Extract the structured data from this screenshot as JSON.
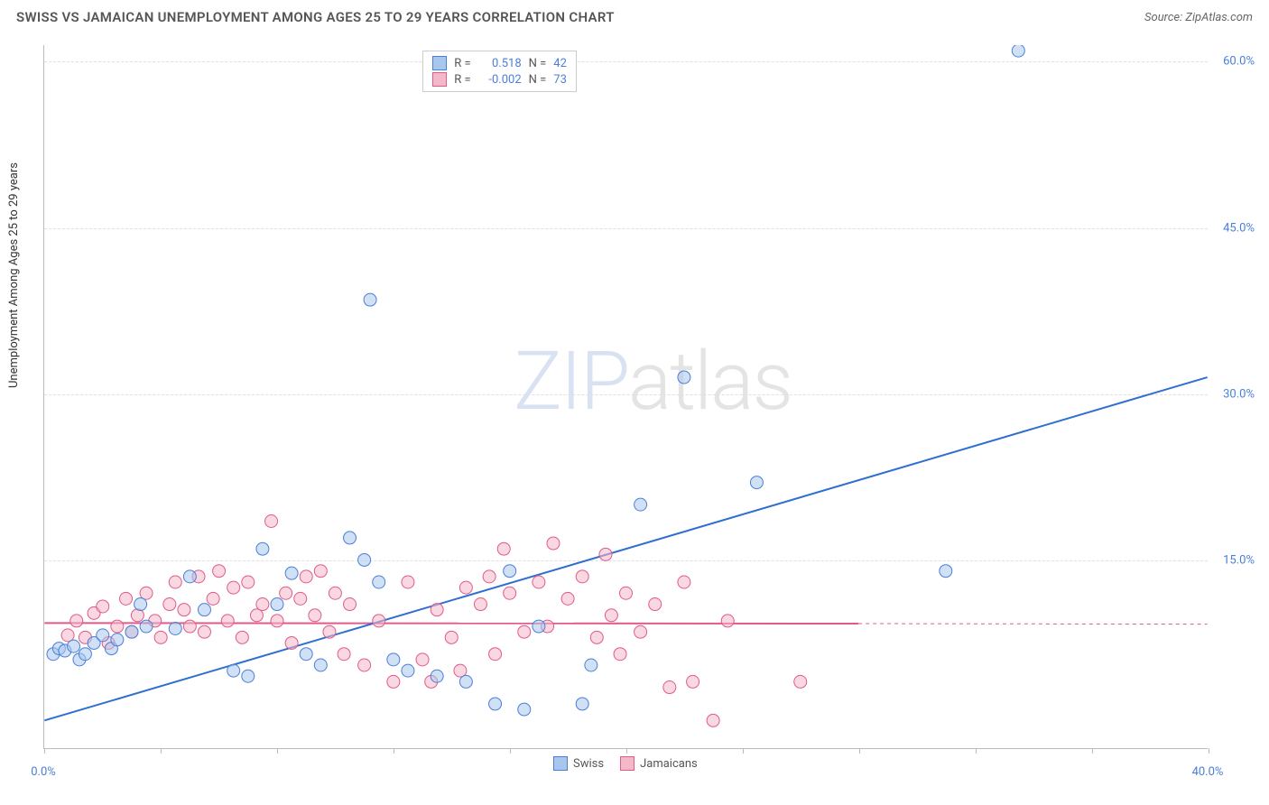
{
  "title": "SWISS VS JAMAICAN UNEMPLOYMENT AMONG AGES 25 TO 29 YEARS CORRELATION CHART",
  "source_label": "Source: ZipAtlas.com",
  "watermark_a": "ZIP",
  "watermark_b": "atlas",
  "chart": {
    "type": "scatter",
    "ylabel": "Unemployment Among Ages 25 to 29 years",
    "xlim": [
      0,
      40
    ],
    "ylim": [
      -2,
      61.5
    ],
    "xtick_positions": [
      0,
      4,
      8,
      12,
      16,
      20,
      24,
      28,
      32,
      36,
      40
    ],
    "xtick_labels": {
      "0": "0.0%",
      "40": "40.0%"
    },
    "ytick_positions": [
      15,
      30,
      45,
      60
    ],
    "ytick_labels": [
      "15.0%",
      "30.0%",
      "45.0%",
      "60.0%"
    ],
    "grid_color": "#e0e0e0",
    "background_color": "#ffffff",
    "series": {
      "swiss": {
        "label": "Swiss",
        "fill": "#a9c6ed",
        "stroke": "#4a7fd8",
        "marker_radius": 7,
        "fill_opacity": 0.55,
        "line": {
          "x1": 0,
          "y1": 0.5,
          "x2": 40,
          "y2": 31.5,
          "color": "#2f6fd0",
          "width": 2
        },
        "points": [
          [
            0.3,
            6.5
          ],
          [
            0.5,
            7.0
          ],
          [
            0.7,
            6.8
          ],
          [
            1.0,
            7.2
          ],
          [
            1.2,
            6.0
          ],
          [
            1.4,
            6.5
          ],
          [
            1.7,
            7.5
          ],
          [
            2.0,
            8.2
          ],
          [
            2.3,
            7.0
          ],
          [
            2.5,
            7.8
          ],
          [
            3.0,
            8.5
          ],
          [
            3.3,
            11.0
          ],
          [
            3.5,
            9.0
          ],
          [
            4.5,
            8.8
          ],
          [
            5.0,
            13.5
          ],
          [
            5.5,
            10.5
          ],
          [
            6.5,
            5.0
          ],
          [
            7.0,
            4.5
          ],
          [
            7.5,
            16.0
          ],
          [
            8.0,
            11.0
          ],
          [
            8.5,
            13.8
          ],
          [
            9.0,
            6.5
          ],
          [
            9.5,
            5.5
          ],
          [
            10.5,
            17.0
          ],
          [
            11.0,
            15.0
          ],
          [
            11.2,
            38.5
          ],
          [
            11.5,
            13.0
          ],
          [
            12.0,
            6.0
          ],
          [
            12.5,
            5.0
          ],
          [
            13.5,
            4.5
          ],
          [
            14.5,
            4.0
          ],
          [
            15.5,
            2.0
          ],
          [
            16.0,
            14.0
          ],
          [
            16.5,
            1.5
          ],
          [
            17.0,
            9.0
          ],
          [
            18.5,
            2.0
          ],
          [
            18.8,
            5.5
          ],
          [
            20.5,
            20.0
          ],
          [
            22.0,
            31.5
          ],
          [
            24.5,
            22.0
          ],
          [
            31.0,
            14.0
          ],
          [
            33.5,
            61.0
          ]
        ]
      },
      "jamaicans": {
        "label": "Jamaicans",
        "fill": "#f5b8c8",
        "stroke": "#e05a8a",
        "marker_radius": 7,
        "fill_opacity": 0.55,
        "line_solid": {
          "x1": 0,
          "y1": 9.3,
          "x2": 28,
          "y2": 9.25,
          "color": "#e05a8a",
          "width": 2
        },
        "line_dash": {
          "x1": 28,
          "y1": 9.25,
          "x2": 40,
          "y2": 9.2,
          "color": "#e05a8a",
          "width": 1,
          "dash": "4,4"
        },
        "points": [
          [
            0.8,
            8.2
          ],
          [
            1.1,
            9.5
          ],
          [
            1.4,
            8.0
          ],
          [
            1.7,
            10.2
          ],
          [
            2.0,
            10.8
          ],
          [
            2.2,
            7.5
          ],
          [
            2.5,
            9.0
          ],
          [
            2.8,
            11.5
          ],
          [
            3.0,
            8.5
          ],
          [
            3.2,
            10.0
          ],
          [
            3.5,
            12.0
          ],
          [
            3.8,
            9.5
          ],
          [
            4.0,
            8.0
          ],
          [
            4.3,
            11.0
          ],
          [
            4.5,
            13.0
          ],
          [
            4.8,
            10.5
          ],
          [
            5.0,
            9.0
          ],
          [
            5.3,
            13.5
          ],
          [
            5.5,
            8.5
          ],
          [
            5.8,
            11.5
          ],
          [
            6.0,
            14.0
          ],
          [
            6.3,
            9.5
          ],
          [
            6.5,
            12.5
          ],
          [
            6.8,
            8.0
          ],
          [
            7.0,
            13.0
          ],
          [
            7.3,
            10.0
          ],
          [
            7.5,
            11.0
          ],
          [
            7.8,
            18.5
          ],
          [
            8.0,
            9.5
          ],
          [
            8.3,
            12.0
          ],
          [
            8.5,
            7.5
          ],
          [
            8.8,
            11.5
          ],
          [
            9.0,
            13.5
          ],
          [
            9.3,
            10.0
          ],
          [
            9.5,
            14.0
          ],
          [
            9.8,
            8.5
          ],
          [
            10.0,
            12.0
          ],
          [
            10.3,
            6.5
          ],
          [
            10.5,
            11.0
          ],
          [
            11.0,
            5.5
          ],
          [
            11.5,
            9.5
          ],
          [
            12.0,
            4.0
          ],
          [
            12.5,
            13.0
          ],
          [
            13.0,
            6.0
          ],
          [
            13.3,
            4.0
          ],
          [
            13.5,
            10.5
          ],
          [
            14.0,
            8.0
          ],
          [
            14.3,
            5.0
          ],
          [
            14.5,
            12.5
          ],
          [
            15.0,
            11.0
          ],
          [
            15.3,
            13.5
          ],
          [
            15.5,
            6.5
          ],
          [
            15.8,
            16.0
          ],
          [
            16.0,
            12.0
          ],
          [
            16.5,
            8.5
          ],
          [
            17.0,
            13.0
          ],
          [
            17.3,
            9.0
          ],
          [
            17.5,
            16.5
          ],
          [
            18.0,
            11.5
          ],
          [
            18.5,
            13.5
          ],
          [
            19.0,
            8.0
          ],
          [
            19.3,
            15.5
          ],
          [
            19.5,
            10.0
          ],
          [
            19.8,
            6.5
          ],
          [
            20.0,
            12.0
          ],
          [
            20.5,
            8.5
          ],
          [
            21.0,
            11.0
          ],
          [
            21.5,
            3.5
          ],
          [
            22.0,
            13.0
          ],
          [
            22.3,
            4.0
          ],
          [
            23.0,
            0.5
          ],
          [
            23.5,
            9.5
          ],
          [
            26.0,
            4.0
          ]
        ]
      }
    },
    "correlation_box": {
      "rows": [
        {
          "swatch_fill": "#a9c6ed",
          "swatch_stroke": "#4a7fd8",
          "r": "0.518",
          "n": "42"
        },
        {
          "swatch_fill": "#f5b8c8",
          "swatch_stroke": "#e05a8a",
          "r": "-0.002",
          "n": "73"
        }
      ],
      "r_prefix": "R =",
      "n_prefix": "N ="
    }
  }
}
